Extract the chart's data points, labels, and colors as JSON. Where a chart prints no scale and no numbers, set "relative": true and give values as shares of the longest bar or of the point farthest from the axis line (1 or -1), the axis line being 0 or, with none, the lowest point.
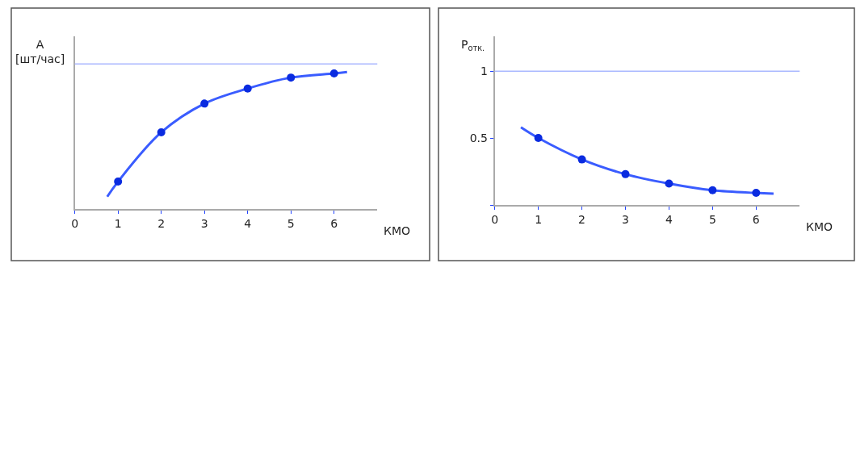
{
  "chart_data": [
    {
      "type": "line",
      "xlabel": "КМО",
      "ylabel": "A [шт/час]",
      "relative": true,
      "xlim": [
        0,
        7
      ],
      "xticks": [
        0,
        1,
        2,
        3,
        4,
        5,
        6
      ],
      "series": [
        {
          "color": "#3a5cff",
          "x": [
            0.75,
            1,
            2,
            3,
            4,
            5,
            6,
            6.3
          ],
          "values": [
            0.09,
            0.2,
            0.56,
            0.77,
            0.88,
            0.96,
            0.99,
            1.0
          ]
        },
        {
          "type": "scatter",
          "color": "#0a2be0",
          "x": [
            1,
            2,
            3,
            4,
            5,
            6
          ],
          "values": [
            0.2,
            0.56,
            0.77,
            0.88,
            0.96,
            0.99
          ]
        }
      ],
      "ref_lines": [
        {
          "axis": "y",
          "value": 1.06,
          "color": "#aab8ff"
        }
      ]
    },
    {
      "type": "line",
      "xlabel": "КМО",
      "ylabel": "P$_{отк.}$",
      "xlim": [
        0,
        7
      ],
      "xticks": [
        0,
        1,
        2,
        3,
        4,
        5,
        6
      ],
      "ylim": [
        0,
        1.26
      ],
      "yticks": [
        {
          "value": 0,
          "label": null
        },
        0.5,
        1
      ],
      "series": [
        {
          "color": "#3a5cff",
          "x": [
            0.6,
            1,
            2,
            3,
            4,
            5,
            6,
            6.4
          ],
          "values": [
            0.58,
            0.5,
            0.34,
            0.23,
            0.16,
            0.11,
            0.09,
            0.085
          ]
        },
        {
          "type": "scatter",
          "color": "#0a2be0",
          "x": [
            1,
            2,
            3,
            4,
            5,
            6
          ],
          "values": [
            0.5,
            0.34,
            0.23,
            0.16,
            0.11,
            0.09
          ]
        }
      ],
      "ref_lines": [
        {
          "axis": "y",
          "value": 1,
          "color": "#aab8ff"
        }
      ]
    }
  ]
}
